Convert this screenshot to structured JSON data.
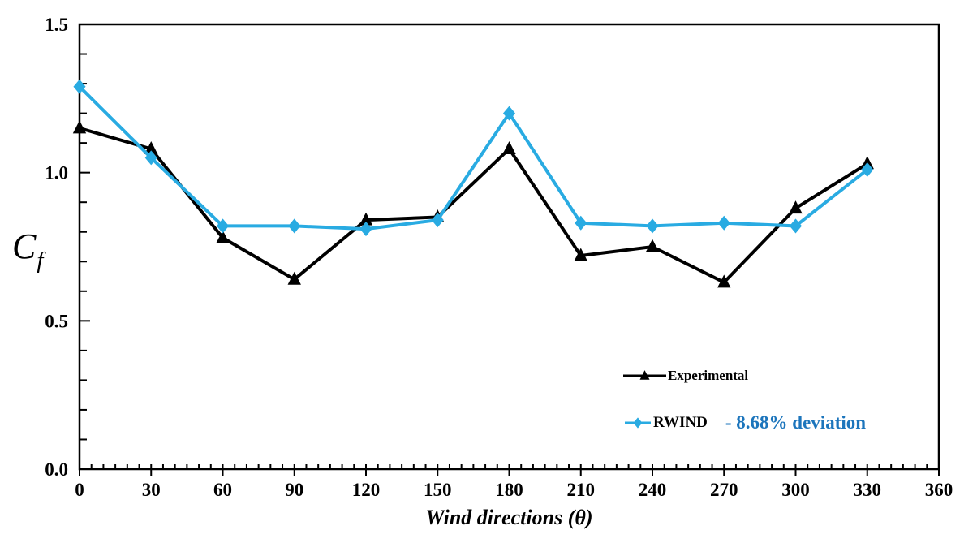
{
  "chart_data": {
    "type": "line",
    "xlabel": "Wind directions (θ)",
    "ylabel": "Cf",
    "ylabel_base": "C",
    "ylabel_sub": "f",
    "x": [
      0,
      30,
      60,
      90,
      120,
      150,
      180,
      210,
      240,
      270,
      300,
      330
    ],
    "series": [
      {
        "name": "Experimental",
        "color": "#000000",
        "marker": "triangle",
        "values": [
          1.15,
          1.08,
          0.78,
          0.64,
          0.84,
          0.85,
          1.08,
          0.72,
          0.75,
          0.63,
          0.88,
          1.03
        ]
      },
      {
        "name": "RWIND",
        "color": "#29abe2",
        "marker": "diamond",
        "values": [
          1.29,
          1.05,
          0.82,
          0.82,
          0.81,
          0.84,
          1.2,
          0.83,
          0.82,
          0.83,
          0.82,
          1.01
        ]
      }
    ],
    "xlim": [
      0,
      360
    ],
    "ylim": [
      0,
      1.5
    ],
    "x_tick_step": 30,
    "x_minor_step": 5,
    "y_tick_step": 0.5,
    "y_minor_step": 0.1,
    "x_tick_labels": [
      "0",
      "30",
      "60",
      "90",
      "120",
      "150",
      "180",
      "210",
      "240",
      "270",
      "300",
      "330",
      "360"
    ],
    "y_tick_labels": [
      "0.0",
      "0.5",
      "1.0",
      "1.5"
    ],
    "grid": false,
    "legend_position": "inside-lower-right",
    "legend": {
      "deviation_text": "- 8.68% deviation",
      "deviation_color": "#1c75bc"
    }
  }
}
